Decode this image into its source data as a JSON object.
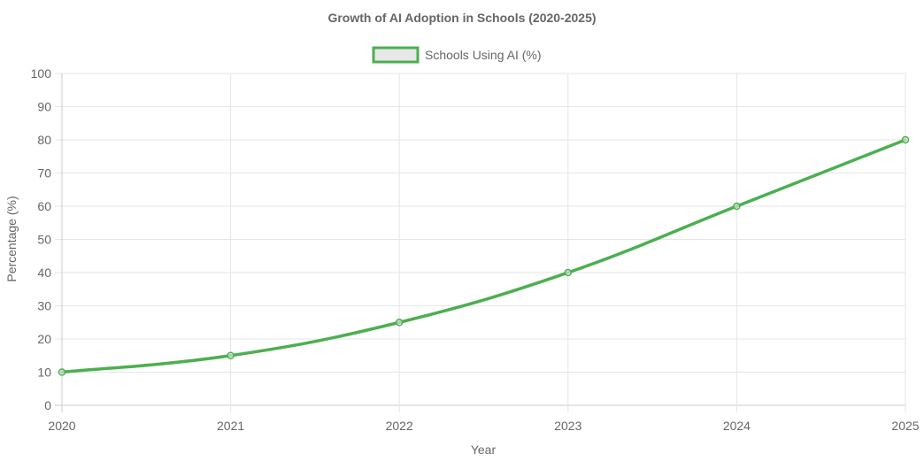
{
  "chart_data": {
    "type": "line",
    "title": "Growth of AI Adoption in Schools (2020-2025)",
    "x": [
      "2020",
      "2021",
      "2022",
      "2023",
      "2024",
      "2025"
    ],
    "series": [
      {
        "name": "Schools Using AI (%)",
        "values": [
          10,
          15,
          25,
          40,
          60,
          80
        ],
        "color": "#4caf50",
        "fill": "#e8e8e8"
      }
    ],
    "xlabel": "Year",
    "ylabel": "Percentage (%)",
    "ylim": [
      0,
      100
    ],
    "yticks": [
      0,
      10,
      20,
      30,
      40,
      50,
      60,
      70,
      80,
      90,
      100
    ],
    "grid": true,
    "legend_position": "top"
  }
}
